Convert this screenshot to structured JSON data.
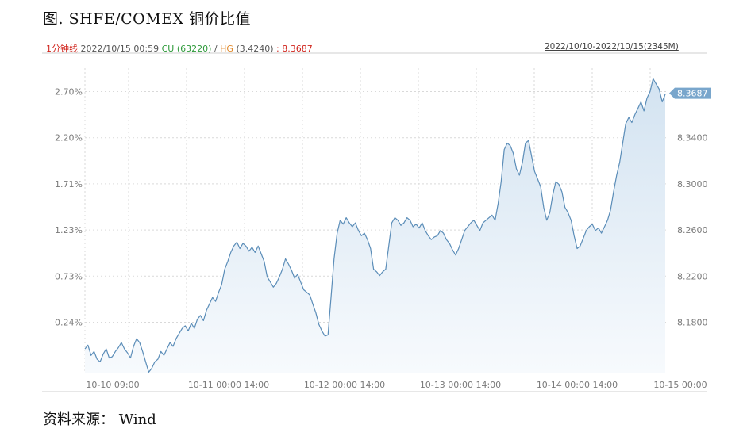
{
  "figure": {
    "title": "图. SHFE/COMEX 铜价比值",
    "source": "资料来源： Wind"
  },
  "info_bar": {
    "interval": "1分钟线",
    "timestamp": "2022/10/15 00:59",
    "cu_label": "CU",
    "cu_value": "(63220)",
    "separator": "/",
    "hg_label": "HG",
    "hg_value": "(3.4240)",
    "ratio_text": ": 8.3687"
  },
  "date_range": "2022/10/10-2022/10/15(2345M)",
  "colors": {
    "line": "#5b8db8",
    "area_top": "#d3e3f1",
    "area_bottom": "#f7fafd",
    "grid": "#d9d9d9",
    "badge": "#79a6cc"
  },
  "chart_data": {
    "type": "area",
    "title": "",
    "xlabel": "",
    "ylabel": "",
    "x_ticks": [
      "10-10 09:00",
      "10-11 00:00 14:00",
      "10-12 00:00 14:00",
      "10-13 00:00 14:00",
      "10-14 00:00 14:00",
      "10-15 00:00"
    ],
    "y_left_ticks": [
      "0.24%",
      "0.73%",
      "1.23%",
      "1.71%",
      "2.20%",
      "2.70%"
    ],
    "y_right_ticks": [
      "8.1800",
      "8.2200",
      "8.2600",
      "8.3000",
      "8.3400",
      "8.3800"
    ],
    "ylim": [
      8.1516,
      8.3882
    ],
    "last_value": "8.3687",
    "grid": true,
    "series": [
      {
        "values": [
          8.17,
          8.173,
          8.165,
          8.168,
          8.162,
          8.16,
          8.166,
          8.17,
          8.163,
          8.164,
          8.168,
          8.171,
          8.175,
          8.17,
          8.167,
          8.163,
          8.172,
          8.178,
          8.175,
          8.168,
          8.16,
          8.152,
          8.155,
          8.16,
          8.162,
          8.168,
          8.165,
          8.17,
          8.175,
          8.172,
          8.178,
          8.182,
          8.186,
          8.188,
          8.184,
          8.19,
          8.186,
          8.193,
          8.196,
          8.192,
          8.2,
          8.205,
          8.21,
          8.207,
          8.214,
          8.22,
          8.232,
          8.238,
          8.245,
          8.25,
          8.253,
          8.248,
          8.252,
          8.25,
          8.246,
          8.249,
          8.245,
          8.25,
          8.244,
          8.238,
          8.226,
          8.222,
          8.218,
          8.221,
          8.226,
          8.232,
          8.24,
          8.236,
          8.231,
          8.225,
          8.228,
          8.222,
          8.216,
          8.214,
          8.212,
          8.205,
          8.198,
          8.189,
          8.184,
          8.18,
          8.181,
          8.21,
          8.24,
          8.26,
          8.27,
          8.267,
          8.272,
          8.268,
          8.265,
          8.268,
          8.262,
          8.258,
          8.26,
          8.255,
          8.248,
          8.232,
          8.23,
          8.227,
          8.23,
          8.232,
          8.25,
          8.268,
          8.272,
          8.27,
          8.266,
          8.268,
          8.272,
          8.27,
          8.265,
          8.267,
          8.264,
          8.268,
          8.262,
          8.258,
          8.255,
          8.257,
          8.258,
          8.262,
          8.26,
          8.255,
          8.252,
          8.247,
          8.243,
          8.248,
          8.255,
          8.262,
          8.265,
          8.268,
          8.27,
          8.266,
          8.262,
          8.268,
          8.27,
          8.272,
          8.274,
          8.27,
          8.283,
          8.3,
          8.325,
          8.33,
          8.328,
          8.322,
          8.31,
          8.305,
          8.315,
          8.33,
          8.332,
          8.32,
          8.308,
          8.302,
          8.296,
          8.28,
          8.27,
          8.276,
          8.29,
          8.3,
          8.298,
          8.292,
          8.28,
          8.276,
          8.27,
          8.258,
          8.248,
          8.25,
          8.256,
          8.262,
          8.265,
          8.267,
          8.262,
          8.264,
          8.26,
          8.265,
          8.27,
          8.278,
          8.292,
          8.305,
          8.315,
          8.33,
          8.345,
          8.35,
          8.346,
          8.352,
          8.357,
          8.362,
          8.355,
          8.365,
          8.37,
          8.38,
          8.376,
          8.372,
          8.362,
          8.368
        ]
      }
    ]
  }
}
